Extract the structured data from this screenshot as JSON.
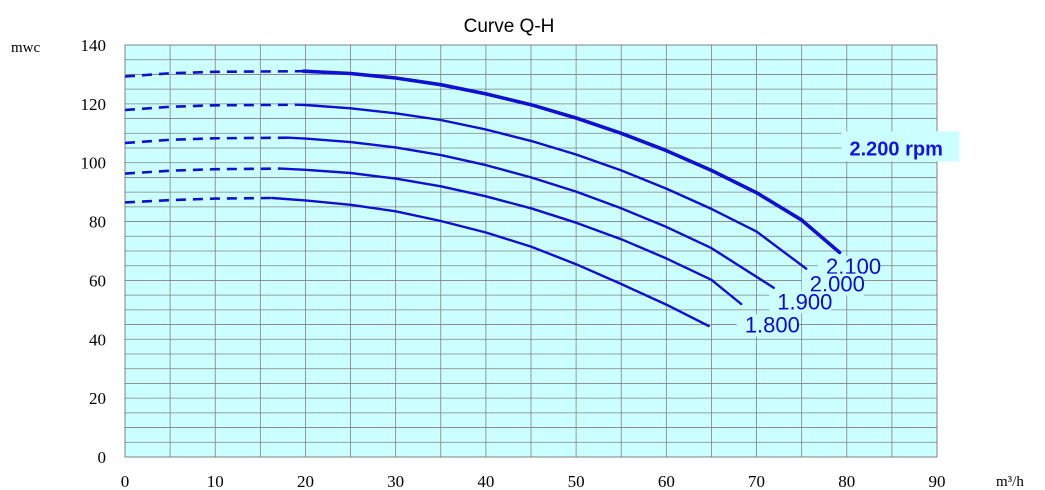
{
  "chart_data": {
    "type": "line",
    "title": "Curve Q-H",
    "xlabel": "m³/h",
    "ylabel": "mwc",
    "xlim": [
      0,
      90
    ],
    "ylim": [
      0,
      140
    ],
    "x_ticks": [
      0,
      10,
      20,
      30,
      40,
      50,
      60,
      70,
      80,
      90
    ],
    "y_ticks": [
      0,
      20,
      40,
      60,
      80,
      100,
      120,
      140
    ],
    "grid": true,
    "plot_background": "#ccffff",
    "grid_color": "#808080",
    "line_color": "#1010d0",
    "series": [
      {
        "name": "1.800",
        "dashed_x": [
          0,
          5,
          10,
          16.3
        ],
        "dashed_y": [
          86.5,
          87.3,
          87.8,
          88
        ],
        "x": [
          16.3,
          20,
          25,
          30,
          35,
          40,
          45,
          50,
          55,
          60,
          64.7
        ],
        "y": [
          88,
          87.2,
          85.7,
          83.5,
          80.2,
          76.3,
          71.5,
          65.5,
          58.8,
          51.8,
          44.5
        ]
      },
      {
        "name": "1.900",
        "dashed_x": [
          0,
          5,
          10,
          17.2
        ],
        "dashed_y": [
          96.3,
          97.3,
          97.8,
          98
        ],
        "x": [
          17.2,
          20,
          25,
          30,
          35,
          40,
          45,
          50,
          55,
          60,
          65,
          68.3
        ],
        "y": [
          98,
          97.6,
          96.5,
          94.6,
          92,
          88.6,
          84.5,
          79.6,
          74,
          67.5,
          60.2,
          52
        ]
      },
      {
        "name": "2.000",
        "dashed_x": [
          0,
          5,
          10,
          18.1
        ],
        "dashed_y": [
          106.7,
          107.8,
          108.3,
          108.5
        ],
        "x": [
          18.1,
          20,
          25,
          30,
          35,
          40,
          45,
          50,
          55,
          60,
          65,
          71.9
        ],
        "y": [
          108.5,
          108.2,
          107,
          105.2,
          102.6,
          99.2,
          95,
          90.2,
          84.5,
          78.2,
          71,
          57.5
        ]
      },
      {
        "name": "2.100",
        "dashed_x": [
          0,
          5,
          10,
          19
        ],
        "dashed_y": [
          117.9,
          119,
          119.5,
          119.7
        ],
        "x": [
          19,
          20,
          25,
          30,
          35,
          40,
          45,
          50,
          55,
          60,
          65,
          70,
          75.5
        ],
        "y": [
          119.7,
          119.6,
          118.5,
          116.8,
          114.5,
          111.3,
          107.4,
          102.8,
          97.4,
          91.2,
          84.3,
          76.6,
          64
        ]
      },
      {
        "name": "2.200 rpm",
        "dashed_x": [
          0,
          5,
          10,
          19.8
        ],
        "dashed_y": [
          129.3,
          130.4,
          130.9,
          131.1
        ],
        "x": [
          19.8,
          25,
          30,
          35,
          40,
          45,
          50,
          55,
          60,
          65,
          70,
          75,
          79.2
        ],
        "y": [
          131.1,
          130.3,
          128.8,
          126.5,
          123.4,
          119.7,
          115.2,
          110,
          104.1,
          97.4,
          89.8,
          80.5,
          69.5
        ]
      }
    ],
    "series_labels": [
      {
        "text": "2.200 rpm",
        "x": 80.3,
        "y": 102.5
      },
      {
        "text": "2.100",
        "x": 77.7,
        "y": 62.2
      },
      {
        "text": "2.000",
        "x": 75.9,
        "y": 56.2
      },
      {
        "text": "1.900",
        "x": 72.3,
        "y": 50.2
      },
      {
        "text": "1.800",
        "x": 68.7,
        "y": 42.3
      }
    ]
  }
}
